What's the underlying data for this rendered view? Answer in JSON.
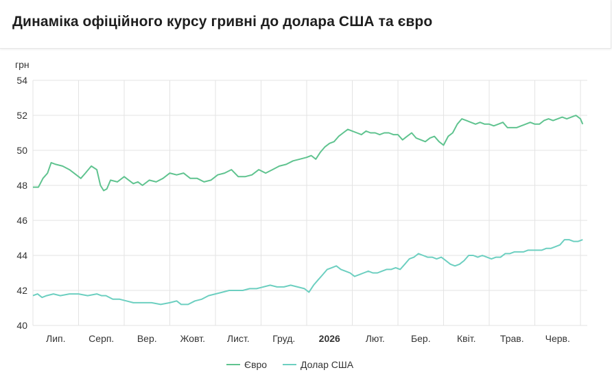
{
  "page": {
    "title": "Динаміка офіційного курсу гривні до долара США та євро"
  },
  "chart_data": {
    "type": "line",
    "title": "Динаміка офіційного курсу гривні до долара США та євро",
    "yunit": "грн",
    "ylim": [
      40,
      54
    ],
    "yticks": [
      40,
      42,
      44,
      46,
      48,
      50,
      52,
      54
    ],
    "x_range": [
      0,
      12.15
    ],
    "x_ticks": [
      {
        "x": 0.5,
        "label": "Лип.",
        "bold": false
      },
      {
        "x": 1.5,
        "label": "Серп.",
        "bold": false
      },
      {
        "x": 2.5,
        "label": "Вер.",
        "bold": false
      },
      {
        "x": 3.5,
        "label": "Жовт.",
        "bold": false
      },
      {
        "x": 4.5,
        "label": "Лист.",
        "bold": false
      },
      {
        "x": 5.5,
        "label": "Груд.",
        "bold": false
      },
      {
        "x": 6.5,
        "label": "2026",
        "bold": true
      },
      {
        "x": 7.5,
        "label": "Лют.",
        "bold": false
      },
      {
        "x": 8.5,
        "label": "Бер.",
        "bold": false
      },
      {
        "x": 9.5,
        "label": "Квіт.",
        "bold": false
      },
      {
        "x": 10.5,
        "label": "Трав.",
        "bold": false
      },
      {
        "x": 11.5,
        "label": "Черв.",
        "bold": false
      }
    ],
    "gridlines": [
      0,
      1,
      2,
      3,
      4,
      5,
      6,
      7,
      8,
      9,
      10,
      11,
      12
    ],
    "grid": true,
    "legend_position": "bottom",
    "series": [
      {
        "name": "Євро",
        "color": "#5fc38f",
        "points": [
          [
            0.0,
            47.9
          ],
          [
            0.12,
            47.9
          ],
          [
            0.22,
            48.4
          ],
          [
            0.32,
            48.7
          ],
          [
            0.4,
            49.3
          ],
          [
            0.5,
            49.2
          ],
          [
            0.65,
            49.1
          ],
          [
            0.8,
            48.9
          ],
          [
            0.95,
            48.6
          ],
          [
            1.05,
            48.4
          ],
          [
            1.15,
            48.7
          ],
          [
            1.28,
            49.1
          ],
          [
            1.4,
            48.9
          ],
          [
            1.48,
            48.0
          ],
          [
            1.55,
            47.7
          ],
          [
            1.62,
            47.8
          ],
          [
            1.7,
            48.3
          ],
          [
            1.85,
            48.2
          ],
          [
            2.0,
            48.5
          ],
          [
            2.1,
            48.3
          ],
          [
            2.2,
            48.1
          ],
          [
            2.3,
            48.2
          ],
          [
            2.4,
            48.0
          ],
          [
            2.55,
            48.3
          ],
          [
            2.7,
            48.2
          ],
          [
            2.85,
            48.4
          ],
          [
            3.0,
            48.7
          ],
          [
            3.15,
            48.6
          ],
          [
            3.3,
            48.7
          ],
          [
            3.45,
            48.4
          ],
          [
            3.6,
            48.4
          ],
          [
            3.75,
            48.2
          ],
          [
            3.9,
            48.3
          ],
          [
            4.05,
            48.6
          ],
          [
            4.2,
            48.7
          ],
          [
            4.35,
            48.9
          ],
          [
            4.5,
            48.5
          ],
          [
            4.65,
            48.5
          ],
          [
            4.8,
            48.6
          ],
          [
            4.95,
            48.9
          ],
          [
            5.1,
            48.7
          ],
          [
            5.25,
            48.9
          ],
          [
            5.4,
            49.1
          ],
          [
            5.55,
            49.2
          ],
          [
            5.7,
            49.4
          ],
          [
            5.85,
            49.5
          ],
          [
            6.0,
            49.6
          ],
          [
            6.1,
            49.7
          ],
          [
            6.2,
            49.5
          ],
          [
            6.3,
            49.9
          ],
          [
            6.4,
            50.2
          ],
          [
            6.5,
            50.4
          ],
          [
            6.6,
            50.5
          ],
          [
            6.7,
            50.8
          ],
          [
            6.8,
            51.0
          ],
          [
            6.9,
            51.2
          ],
          [
            7.0,
            51.1
          ],
          [
            7.1,
            51.0
          ],
          [
            7.2,
            50.9
          ],
          [
            7.3,
            51.1
          ],
          [
            7.4,
            51.0
          ],
          [
            7.5,
            51.0
          ],
          [
            7.6,
            50.9
          ],
          [
            7.7,
            51.0
          ],
          [
            7.8,
            51.0
          ],
          [
            7.9,
            50.9
          ],
          [
            8.0,
            50.9
          ],
          [
            8.1,
            50.6
          ],
          [
            8.2,
            50.8
          ],
          [
            8.3,
            51.0
          ],
          [
            8.4,
            50.7
          ],
          [
            8.5,
            50.6
          ],
          [
            8.6,
            50.5
          ],
          [
            8.7,
            50.7
          ],
          [
            8.8,
            50.8
          ],
          [
            8.9,
            50.5
          ],
          [
            9.0,
            50.3
          ],
          [
            9.1,
            50.8
          ],
          [
            9.2,
            51.0
          ],
          [
            9.3,
            51.5
          ],
          [
            9.4,
            51.8
          ],
          [
            9.5,
            51.7
          ],
          [
            9.6,
            51.6
          ],
          [
            9.7,
            51.5
          ],
          [
            9.8,
            51.6
          ],
          [
            9.9,
            51.5
          ],
          [
            10.0,
            51.5
          ],
          [
            10.1,
            51.4
          ],
          [
            10.2,
            51.5
          ],
          [
            10.3,
            51.6
          ],
          [
            10.4,
            51.3
          ],
          [
            10.5,
            51.3
          ],
          [
            10.6,
            51.3
          ],
          [
            10.7,
            51.4
          ],
          [
            10.8,
            51.5
          ],
          [
            10.9,
            51.6
          ],
          [
            11.0,
            51.5
          ],
          [
            11.1,
            51.5
          ],
          [
            11.2,
            51.7
          ],
          [
            11.3,
            51.8
          ],
          [
            11.4,
            51.7
          ],
          [
            11.5,
            51.8
          ],
          [
            11.6,
            51.9
          ],
          [
            11.7,
            51.8
          ],
          [
            11.8,
            51.9
          ],
          [
            11.9,
            52.0
          ],
          [
            12.0,
            51.8
          ],
          [
            12.05,
            51.5
          ]
        ]
      },
      {
        "name": "Долар США",
        "color": "#6ccfc0",
        "points": [
          [
            0.0,
            41.7
          ],
          [
            0.1,
            41.8
          ],
          [
            0.2,
            41.6
          ],
          [
            0.3,
            41.7
          ],
          [
            0.45,
            41.8
          ],
          [
            0.6,
            41.7
          ],
          [
            0.8,
            41.8
          ],
          [
            1.0,
            41.8
          ],
          [
            1.2,
            41.7
          ],
          [
            1.4,
            41.8
          ],
          [
            1.5,
            41.7
          ],
          [
            1.6,
            41.7
          ],
          [
            1.75,
            41.5
          ],
          [
            1.9,
            41.5
          ],
          [
            2.05,
            41.4
          ],
          [
            2.2,
            41.3
          ],
          [
            2.4,
            41.3
          ],
          [
            2.6,
            41.3
          ],
          [
            2.8,
            41.2
          ],
          [
            3.0,
            41.3
          ],
          [
            3.15,
            41.4
          ],
          [
            3.25,
            41.2
          ],
          [
            3.4,
            41.2
          ],
          [
            3.55,
            41.4
          ],
          [
            3.7,
            41.5
          ],
          [
            3.85,
            41.7
          ],
          [
            4.0,
            41.8
          ],
          [
            4.15,
            41.9
          ],
          [
            4.3,
            42.0
          ],
          [
            4.45,
            42.0
          ],
          [
            4.6,
            42.0
          ],
          [
            4.75,
            42.1
          ],
          [
            4.9,
            42.1
          ],
          [
            5.05,
            42.2
          ],
          [
            5.2,
            42.3
          ],
          [
            5.35,
            42.2
          ],
          [
            5.5,
            42.2
          ],
          [
            5.65,
            42.3
          ],
          [
            5.8,
            42.2
          ],
          [
            5.95,
            42.1
          ],
          [
            6.05,
            41.9
          ],
          [
            6.15,
            42.3
          ],
          [
            6.25,
            42.6
          ],
          [
            6.35,
            42.9
          ],
          [
            6.45,
            43.2
          ],
          [
            6.55,
            43.3
          ],
          [
            6.65,
            43.4
          ],
          [
            6.75,
            43.2
          ],
          [
            6.85,
            43.1
          ],
          [
            6.95,
            43.0
          ],
          [
            7.05,
            42.8
          ],
          [
            7.15,
            42.9
          ],
          [
            7.25,
            43.0
          ],
          [
            7.35,
            43.1
          ],
          [
            7.45,
            43.0
          ],
          [
            7.55,
            43.0
          ],
          [
            7.65,
            43.1
          ],
          [
            7.75,
            43.2
          ],
          [
            7.85,
            43.2
          ],
          [
            7.95,
            43.3
          ],
          [
            8.05,
            43.2
          ],
          [
            8.15,
            43.5
          ],
          [
            8.25,
            43.8
          ],
          [
            8.35,
            43.9
          ],
          [
            8.45,
            44.1
          ],
          [
            8.55,
            44.0
          ],
          [
            8.65,
            43.9
          ],
          [
            8.75,
            43.9
          ],
          [
            8.85,
            43.8
          ],
          [
            8.95,
            43.9
          ],
          [
            9.05,
            43.7
          ],
          [
            9.15,
            43.5
          ],
          [
            9.25,
            43.4
          ],
          [
            9.35,
            43.5
          ],
          [
            9.45,
            43.7
          ],
          [
            9.55,
            44.0
          ],
          [
            9.65,
            44.0
          ],
          [
            9.75,
            43.9
          ],
          [
            9.85,
            44.0
          ],
          [
            9.95,
            43.9
          ],
          [
            10.05,
            43.8
          ],
          [
            10.15,
            43.9
          ],
          [
            10.25,
            43.9
          ],
          [
            10.35,
            44.1
          ],
          [
            10.45,
            44.1
          ],
          [
            10.55,
            44.2
          ],
          [
            10.65,
            44.2
          ],
          [
            10.75,
            44.2
          ],
          [
            10.85,
            44.3
          ],
          [
            10.95,
            44.3
          ],
          [
            11.05,
            44.3
          ],
          [
            11.15,
            44.3
          ],
          [
            11.25,
            44.4
          ],
          [
            11.35,
            44.4
          ],
          [
            11.45,
            44.5
          ],
          [
            11.55,
            44.6
          ],
          [
            11.65,
            44.9
          ],
          [
            11.75,
            44.9
          ],
          [
            11.85,
            44.8
          ],
          [
            11.95,
            44.8
          ],
          [
            12.05,
            44.9
          ]
        ]
      }
    ]
  }
}
